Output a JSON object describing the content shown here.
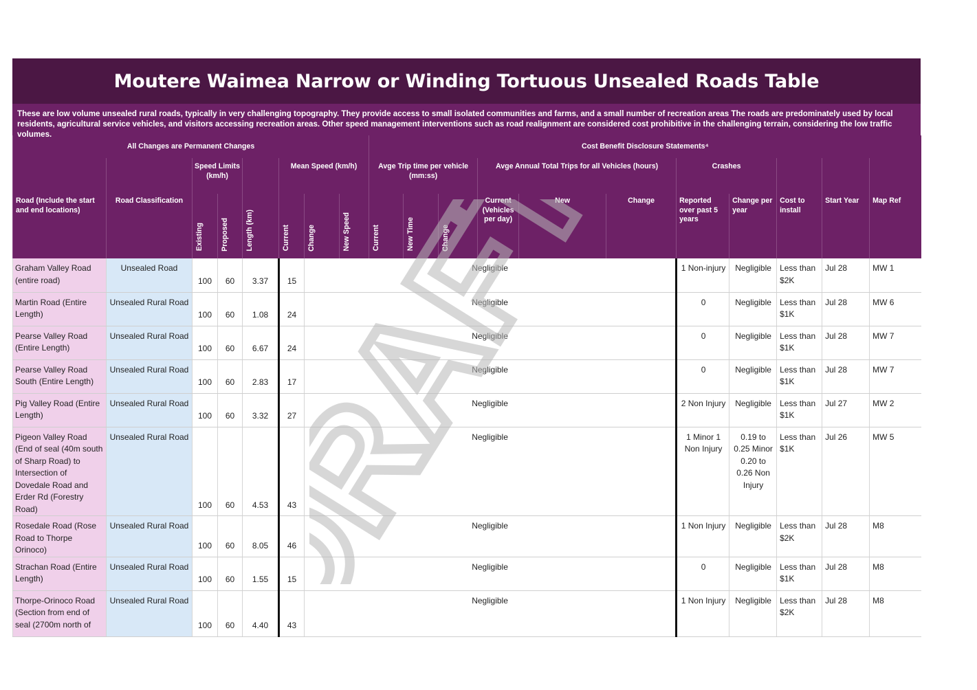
{
  "title": "Moutere Waimea Narrow or Winding Tortuous Unsealed Roads Table",
  "description": "These are low volume unsealed rural roads, typically in very challenging topography.  They provide access to small isolated communities and farms, and a small number of recreation areas The roads are predominately used by local residents, agricultural service vehicles, and visitors accessing recreation areas. Other speed management interventions such as road realignment are considered cost prohibitive in the challenging terrain, considering the low traffic volumes.",
  "sections": {
    "left": "All Changes are Permanent Changes",
    "right": "Cost Benefit Disclosure Statements⁴"
  },
  "groups": {
    "speed_limits": "Speed Limits (km/h)",
    "mean_speed": "Mean Speed (km/h)",
    "trip_time": "Avge Trip time per vehicle (mm:ss)",
    "annual_trips": "Avge Annual Total Trips for all Vehicles (hours)",
    "crashes": "Crashes"
  },
  "columns": {
    "road": "Road (Include the start and end locations)",
    "classification": "Road Classification",
    "existing": "Existing",
    "proposed": "Proposed",
    "length": "Length (km)",
    "ms_current": "Current",
    "ms_change": "Change",
    "ms_new": "New Speed",
    "tt_current": "Current",
    "tt_new": "New Time",
    "tt_change": "Change",
    "at_current": "Current (Vehicles per day)",
    "at_new": "New",
    "at_change": "Change",
    "cr_reported": "Reported over past 5 years",
    "cr_change": "Change per year",
    "cost": "Cost to install",
    "start_year": "Start Year",
    "map_ref": "Map Ref"
  },
  "rows": [
    {
      "road": "Graham Valley Road (entire road)",
      "classification": "Unsealed Road",
      "existing": "100",
      "proposed": "60",
      "length": "3.37",
      "current": "15",
      "impact": "Negligible",
      "crashes": "1 Non-injury",
      "crash_change": "Negligible",
      "cost": "Less than $2K",
      "start": "Jul 28",
      "map": "MW 1"
    },
    {
      "road": "Martin Road (Entire Length)",
      "classification": "Unsealed Rural Road",
      "existing": "100",
      "proposed": "60",
      "length": "1.08",
      "current": "24",
      "impact": "Negligible",
      "crashes": "0",
      "crash_change": "Negligible",
      "cost": "Less than $1K",
      "start": "Jul 28",
      "map": "MW 6"
    },
    {
      "road": "Pearse Valley Road (Entire Length)",
      "classification": "Unsealed Rural Road",
      "existing": "100",
      "proposed": "60",
      "length": "6.67",
      "current": "24",
      "impact": "Negligible",
      "crashes": "0",
      "crash_change": "Negligible",
      "cost": "Less than $1K",
      "start": "Jul 28",
      "map": "MW 7"
    },
    {
      "road": "Pearse Valley Road South (Entire Length)",
      "classification": "Unsealed Rural Road",
      "existing": "100",
      "proposed": "60",
      "length": "2.83",
      "current": "17",
      "impact": "Negligible",
      "crashes": "0",
      "crash_change": "Negligible",
      "cost": "Less than $1K",
      "start": "Jul 28",
      "map": "MW 7"
    },
    {
      "road": "Pig Valley Road (Entire Length)",
      "classification": "Unsealed Rural Road",
      "existing": "100",
      "proposed": "60",
      "length": "3.32",
      "current": "27",
      "impact": "Negligible",
      "crashes": "2 Non Injury",
      "crash_change": "Negligible",
      "cost": "Less than $1K",
      "start": "Jul 27",
      "map": "MW 2"
    },
    {
      "road": "Pigeon Valley Road (End of seal (40m south of Sharp Road) to Intersection of Dovedale Road and Erder Rd (Forestry Road)",
      "classification": "Unsealed Rural Road",
      "existing": "100",
      "proposed": "60",
      "length": "4.53",
      "current": "43",
      "impact": "Negligible",
      "crashes": "1 Minor 1 Non Injury",
      "crash_change": "0.19 to 0.25 Minor 0.20 to 0.26 Non Injury",
      "cost": "Less than $1K",
      "start": "Jul 26",
      "map": "MW 5"
    },
    {
      "road": "Rosedale Road (Rose Road to Thorpe Orinoco)",
      "classification": "Unsealed Rural Road",
      "existing": "100",
      "proposed": "60",
      "length": "8.05",
      "current": "46",
      "impact": "Negligible",
      "crashes": "1 Non Injury",
      "crash_change": "Negligible",
      "cost": "Less than $2K",
      "start": "Jul 28",
      "map": "M8"
    },
    {
      "road": "Strachan Road (Entire Length)",
      "classification": "Unsealed Rural Road",
      "existing": "100",
      "proposed": "60",
      "length": "1.55",
      "current": "15",
      "impact": "Negligible",
      "crashes": "0",
      "crash_change": "Negligible",
      "cost": "Less than $1K",
      "start": "Jul 28",
      "map": "M8"
    },
    {
      "road": "Thorpe-Orinoco Road (Section from end of seal (2700m north of",
      "classification": "Unsealed Rural Road",
      "existing": "100",
      "proposed": "60",
      "length": "4.40",
      "current": "43",
      "impact": "Negligible",
      "crashes": "1 Non Injury",
      "crash_change": "Negligible",
      "cost": "Less than $2K",
      "start": "Jul 28",
      "map": "M8"
    }
  ],
  "watermark": "DRAFT",
  "colors": {
    "title_bg": "#4b1744",
    "header_bg": "#6d2166",
    "road_cell": "#f0d0ea",
    "class_cell": "#d8e8f7"
  }
}
